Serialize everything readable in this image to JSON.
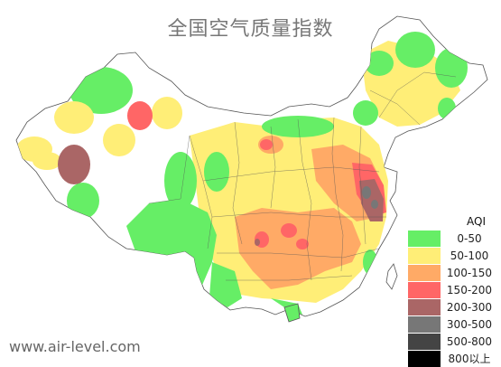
{
  "title": "全国空气质量指数",
  "source": "www.air-level.com",
  "legend": {
    "title": "AQI",
    "items": [
      {
        "label": "0-50",
        "color": "#66ee66"
      },
      {
        "label": "50-100",
        "color": "#ffee77"
      },
      {
        "label": "100-150",
        "color": "#ffaa66"
      },
      {
        "label": "150-200",
        "color": "#ff6666"
      },
      {
        "label": "200-300",
        "color": "#aa6666"
      },
      {
        "label": "300-500",
        "color": "#777777"
      },
      {
        "label": "500-800",
        "color": "#444444"
      },
      {
        "label": "800以上",
        "color": "#000000"
      }
    ]
  }
}
